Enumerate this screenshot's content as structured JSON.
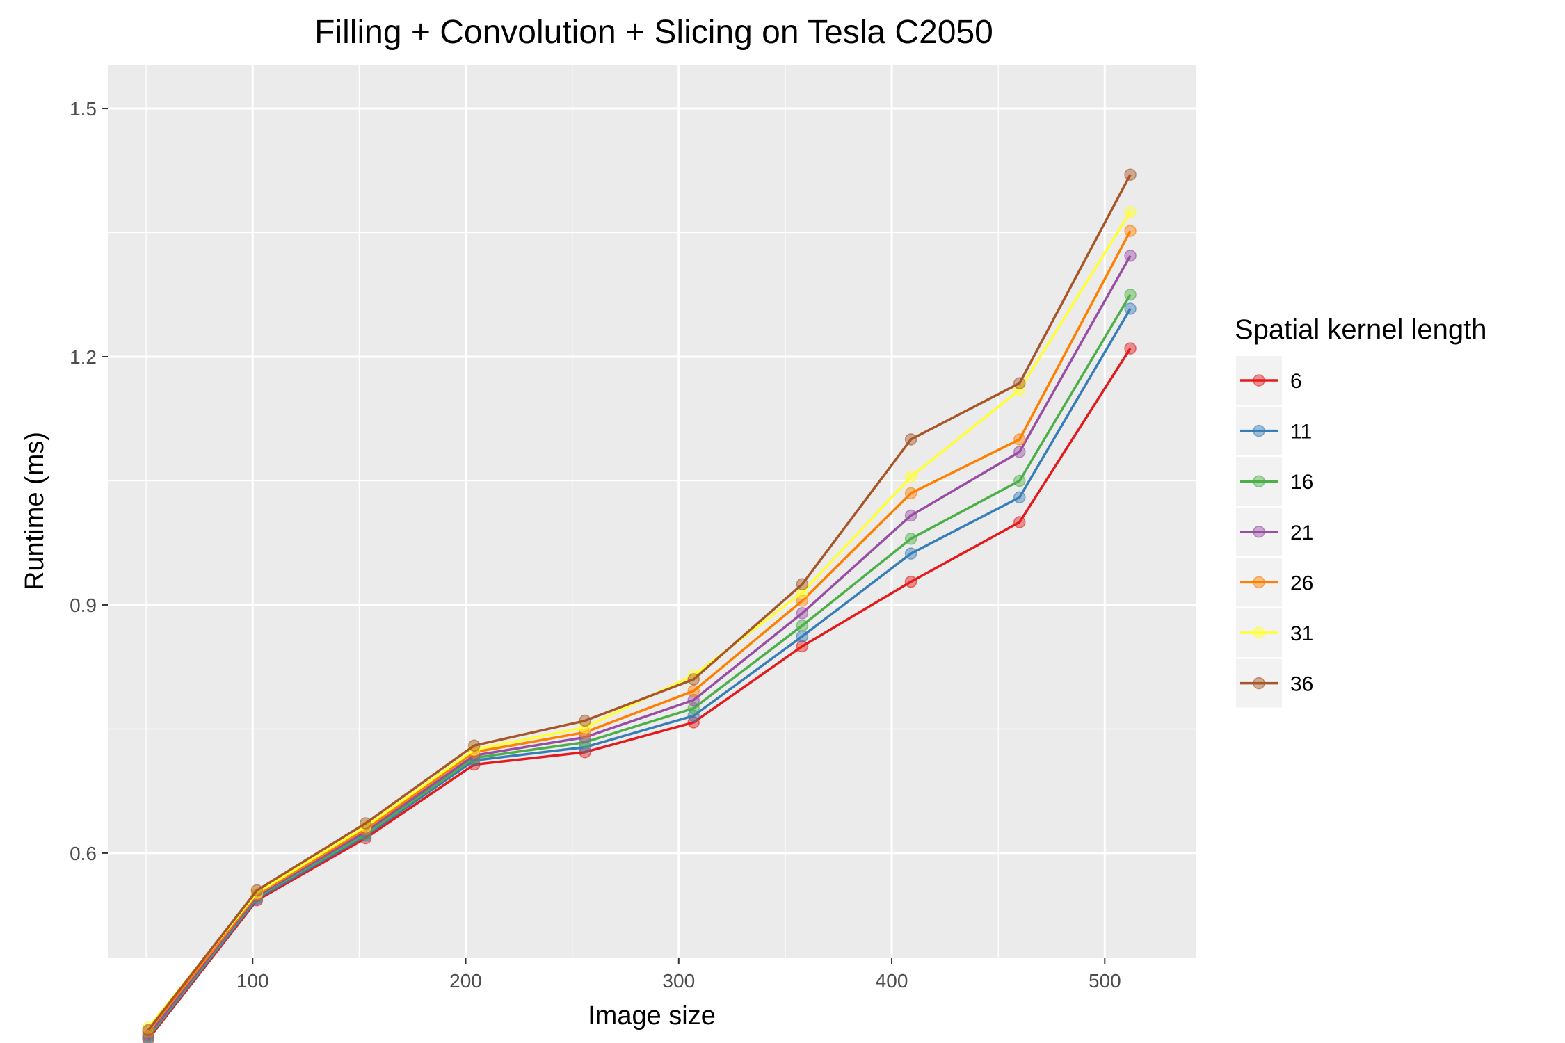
{
  "chart_data": {
    "type": "line",
    "title": "Filling + Convolution + Slicing on Tesla C2050",
    "xlabel": "Image size",
    "ylabel": "Runtime (ms)",
    "xlim": [
      32,
      543
    ],
    "ylim": [
      0.473,
      1.553
    ],
    "x_ticks": [
      100,
      200,
      300,
      400,
      500
    ],
    "x_tick_labels": [
      "100",
      "200",
      "300",
      "400",
      "500"
    ],
    "y_ticks": [
      0.6,
      0.9,
      1.2,
      1.5
    ],
    "y_tick_labels": [
      "0.6",
      "0.9",
      "1.2",
      "1.5"
    ],
    "grid": true,
    "legend": {
      "title": "Spatial kernel length",
      "placement": "right"
    },
    "x": [
      51,
      102,
      153,
      204,
      256,
      307,
      358,
      409,
      460,
      512
    ],
    "series": [
      {
        "name": "6",
        "color": "#E41A1C",
        "values": [
          0.375,
          0.543,
          0.618,
          0.707,
          0.722,
          0.758,
          0.85,
          0.928,
          1.0,
          1.21
        ]
      },
      {
        "name": "11",
        "color": "#377EB8",
        "values": [
          0.377,
          0.545,
          0.621,
          0.712,
          0.728,
          0.766,
          0.862,
          0.962,
          1.03,
          1.258
        ]
      },
      {
        "name": "16",
        "color": "#4DAF4A",
        "values": [
          0.378,
          0.547,
          0.623,
          0.715,
          0.734,
          0.775,
          0.875,
          0.98,
          1.05,
          1.275
        ]
      },
      {
        "name": "21",
        "color": "#984EA3",
        "values": [
          0.38,
          0.548,
          0.626,
          0.718,
          0.74,
          0.785,
          0.89,
          1.008,
          1.085,
          1.322
        ]
      },
      {
        "name": "26",
        "color": "#FF7F00",
        "values": [
          0.384,
          0.55,
          0.629,
          0.722,
          0.746,
          0.796,
          0.905,
          1.035,
          1.1,
          1.352
        ]
      },
      {
        "name": "31",
        "color": "#FFFF33",
        "values": [
          0.389,
          0.552,
          0.632,
          0.725,
          0.752,
          0.815,
          0.915,
          1.055,
          1.16,
          1.375
        ]
      },
      {
        "name": "36",
        "color": "#A65628",
        "values": [
          0.386,
          0.555,
          0.636,
          0.73,
          0.76,
          0.81,
          0.925,
          1.1,
          1.168,
          1.42
        ]
      }
    ]
  }
}
